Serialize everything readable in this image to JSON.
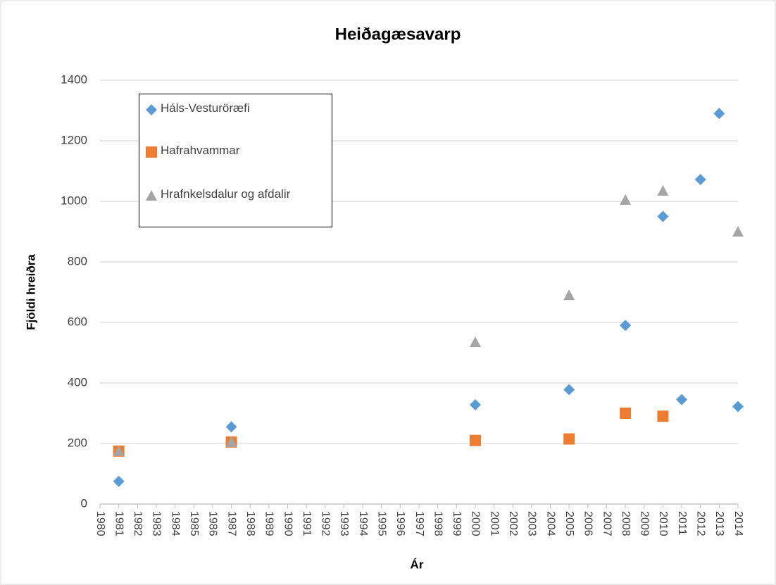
{
  "chart_data": {
    "type": "scatter",
    "title": "Heiðagæsavarp",
    "xlabel": "Ár",
    "ylabel": "Fjöldi hreiðra",
    "xlim": [
      1980,
      2014
    ],
    "xticks": [
      1980,
      1981,
      1982,
      1983,
      1984,
      1985,
      1986,
      1987,
      1988,
      1989,
      1990,
      1991,
      1992,
      1993,
      1994,
      1995,
      1996,
      1997,
      1998,
      1999,
      2000,
      2001,
      2002,
      2003,
      2004,
      2005,
      2006,
      2007,
      2008,
      2009,
      2010,
      2011,
      2012,
      2013,
      2014
    ],
    "ylim": [
      0,
      1400
    ],
    "yticks": [
      0,
      200,
      400,
      600,
      800,
      1000,
      1200,
      1400
    ],
    "grid": true,
    "series": [
      {
        "name": "Háls-Vesturöræfi",
        "color": "#5b9bd5",
        "marker": "diamond",
        "x": [
          1981,
          1987,
          2000,
          2005,
          2008,
          2010,
          2011,
          2012,
          2013,
          2014
        ],
        "values": [
          75,
          255,
          328,
          378,
          590,
          950,
          345,
          1072,
          1290,
          322
        ]
      },
      {
        "name": "Hafrahvammar",
        "color": "#ed7d31",
        "marker": "square",
        "x": [
          1981,
          1987,
          2000,
          2005,
          2008,
          2010
        ],
        "values": [
          175,
          205,
          210,
          215,
          300,
          290
        ]
      },
      {
        "name": "Hrafnkelsdalur og afdalir",
        "color": "#a5a5a5",
        "marker": "triangle",
        "x": [
          1981,
          1987,
          2000,
          2005,
          2008,
          2010,
          2014
        ],
        "values": [
          175,
          205,
          535,
          690,
          1005,
          1035,
          900
        ]
      }
    ]
  }
}
